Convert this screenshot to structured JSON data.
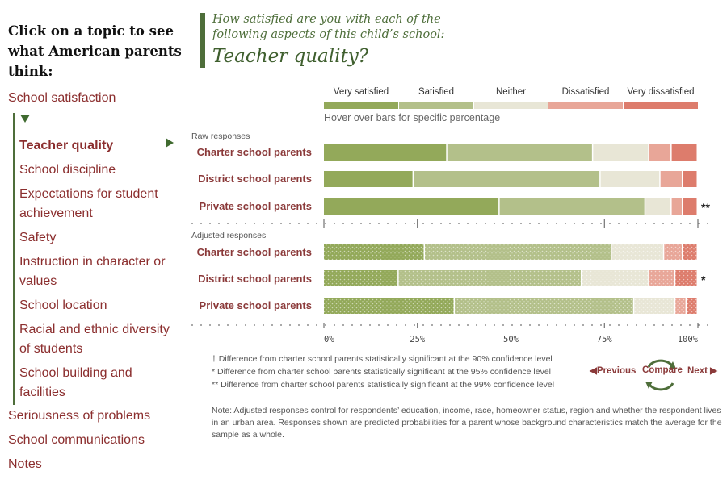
{
  "sidebar": {
    "heading": "Click on a topic to see what American parents think:",
    "top_item": "School satisfaction",
    "sub_items": [
      "Teacher quality",
      "School discipline",
      "Expectations for student achievement",
      "Safety",
      "Instruction in character or values",
      "School location",
      "Racial and ethnic diversity of students",
      "School building and facilities"
    ],
    "bottom_items": [
      "Seriousness of problems",
      "School communications",
      "Notes"
    ]
  },
  "question": {
    "prefix": "How satisfied are you with each of the following aspects of this child’s school:",
    "topic": "Teacher quality?"
  },
  "hint": "Hover over bars for specific percentage",
  "colors": {
    "very_satisfied": "#93a95a",
    "satisfied": "#b3c08a",
    "neither": "#e8e6d6",
    "dissatisfied": "#e8a698",
    "very_dissatisfied": "#dd7c6c",
    "label_red": "#8b3a3a",
    "accent_green": "#4e6e3a"
  },
  "chart_data": {
    "type": "bar",
    "orientation": "horizontal-stacked-100",
    "categories_legend": [
      "Very satisfied",
      "Satisfied",
      "Neither",
      "Dissatisfied",
      "Very dissatisfied"
    ],
    "x_ticks": [
      "0%",
      "25%",
      "50%",
      "75%",
      "100%"
    ],
    "xlim": [
      0,
      100
    ],
    "groups": [
      {
        "label": "Raw responses",
        "rows": [
          {
            "name": "Charter school parents",
            "values": [
              33,
              39,
              15,
              6,
              7
            ],
            "sig": ""
          },
          {
            "name": "District school parents",
            "values": [
              24,
              50,
              16,
              6,
              4
            ],
            "sig": ""
          },
          {
            "name": "Private school parents",
            "values": [
              47,
              39,
              7,
              3,
              4
            ],
            "sig": "**"
          }
        ]
      },
      {
        "label": "Adjusted responses",
        "rows": [
          {
            "name": "Charter school parents",
            "values": [
              27,
              50,
              14,
              5,
              4
            ],
            "sig": ""
          },
          {
            "name": "District school parents",
            "values": [
              20,
              49,
              18,
              7,
              6
            ],
            "sig": "*"
          },
          {
            "name": "Private school parents",
            "values": [
              35,
              48,
              11,
              3,
              3
            ],
            "sig": ""
          }
        ]
      }
    ]
  },
  "footnotes": [
    "† Difference from charter school parents statistically significant at the 90% confidence level",
    "* Difference from charter school parents statistically significant at the 95% confidence level",
    "** Difference from charter school parents statistically significant at the 99% confidence level"
  ],
  "note": "Note: Adjusted responses control for respondents’ education, income, race, homeowner status, region and whether the respondent lives in an urban area. Responses shown are predicted probabilities for a parent whose background characteristics match the average for the sample as a whole.",
  "navigation": {
    "previous": "◀Previous",
    "compare": "Compare",
    "next": "Next ▶"
  }
}
